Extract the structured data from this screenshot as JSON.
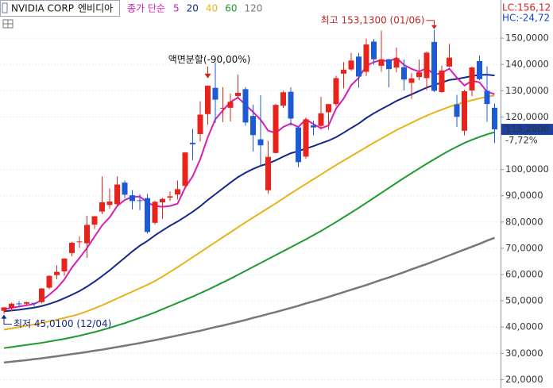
{
  "chart_data": {
    "type": "candlestick",
    "title": "NVIDIA CORP",
    "subtitle": "엔비디아",
    "ma_label": "종가 단순",
    "lc_label": "LC:156,12",
    "hc_label": "HC:-24,72",
    "up_color": "#e8231c",
    "down_color": "#1d5bd6",
    "open": [
      46.2,
      47.2,
      49.0,
      48.9,
      49.2,
      49.5,
      55.0,
      59.8,
      61.2,
      68.2,
      72.6,
      71.9,
      79.0,
      84.0,
      86.5,
      86.8,
      95.0,
      90.2,
      88.3,
      89.1,
      79.7,
      87.5,
      89.3,
      90.5,
      93.8,
      110.2,
      113.5,
      121.1,
      131.1,
      123.2,
      123.5,
      128.0,
      130.6,
      120.4,
      111.5,
      92.1,
      106.3,
      124.3,
      129.6,
      116.0,
      104.9,
      116.8,
      116.6,
      121.8,
      124.9,
      136.5,
      138.1,
      143.0,
      137.2,
      148.7,
      139.5,
      141.99,
      138.8,
      138.97,
      132.99,
      135.2,
      134.8,
      148.6,
      129.5,
      139.2,
      124.8,
      114.75,
      130.1,
      141.3,
      130.0,
      123.5
    ],
    "high": [
      47.6,
      49.3,
      49.9,
      49.6,
      49.3,
      54.8,
      59.7,
      63.5,
      66.2,
      72.4,
      74.6,
      82.4,
      82.3,
      97.4,
      92.8,
      97.4,
      95.8,
      92.2,
      90.6,
      90.7,
      88.2,
      89.2,
      91.6,
      95.8,
      106.6,
      115.5,
      126.0,
      132.0,
      140.8,
      131.4,
      128.9,
      136.2,
      131.4,
      124.7,
      128.2,
      110.9,
      125.0,
      130.0,
      131.3,
      116.2,
      119.8,
      118.6,
      127.7,
      125.0,
      135.7,
      140.9,
      144.4,
      144.4,
      149.8,
      149.7,
      152.9,
      142.1,
      146.5,
      141.8,
      136.7,
      141.9,
      144.9,
      153.13,
      139.6,
      147.8,
      128.4,
      130.4,
      139.25,
      143.4,
      139.3,
      125.1
    ],
    "low": [
      45.01,
      46.0,
      47.5,
      48.2,
      47.3,
      49.0,
      54.4,
      58.2,
      59.5,
      66.9,
      70.2,
      66.3,
      77.3,
      83.0,
      85.1,
      86.0,
      89.1,
      84.8,
      84.5,
      75.6,
      79.0,
      81.2,
      88.0,
      88.6,
      92.6,
      103.5,
      110.7,
      117.0,
      117.8,
      118.0,
      118.3,
      127.0,
      116.7,
      106.8,
      101.4,
      90.7,
      106.1,
      123.4,
      116.7,
      100.9,
      104.1,
      113.0,
      115.2,
      115.1,
      124.0,
      130.9,
      137.5,
      131.2,
      135.6,
      139.9,
      137.2,
      131.3,
      137.0,
      130.1,
      126.9,
      134.0,
      130.2,
      129.5,
      129.2,
      139.0,
      116.25,
      113.0,
      127.9,
      134.0,
      118.2,
      110.1
    ],
    "close": [
      47.5,
      48.9,
      48.8,
      49.5,
      49.1,
      54.7,
      59.5,
      61.0,
      66.1,
      72.1,
      72.6,
      78.9,
      82.2,
      87.5,
      87.8,
      94.3,
      90.4,
      88.0,
      88.1,
      76.2,
      87.7,
      88.8,
      89.8,
      92.5,
      106.5,
      109.6,
      120.9,
      131.9,
      126.6,
      123.5,
      125.8,
      129.2,
      117.9,
      113.1,
      109.2,
      104.8,
      124.6,
      129.4,
      119.4,
      102.8,
      119.1,
      116.0,
      121.4,
      124.9,
      134.8,
      138.0,
      141.5,
      135.4,
      147.6,
      141.98,
      141.95,
      138.25,
      142.4,
      134.25,
      134.7,
      137.0,
      144.5,
      129.98,
      137.7,
      142.6,
      120.07,
      129.8,
      138.85,
      134.43,
      124.92,
      115.28
    ],
    "moving_averages": [
      {
        "name": "5",
        "color": "#d61fb4",
        "values": [
          46.8,
          47.3,
          47.8,
          48.3,
          48.8,
          50.2,
          52.3,
          54.8,
          58.1,
          62.7,
          66.3,
          70.1,
          74.4,
          78.7,
          81.8,
          86.1,
          88.4,
          89.6,
          89.7,
          87.4,
          86.1,
          85.8,
          86.1,
          87.0,
          93.1,
          97.4,
          103.9,
          112.3,
          119.1,
          122.5,
          125.7,
          127.4,
          124.6,
          121.9,
          119.0,
          114.8,
          113.9,
          116.2,
          117.5,
          116.2,
          119.1,
          117.3,
          115.7,
          116.8,
          123.2,
          127.0,
          132.1,
          134.9,
          139.5,
          140.9,
          141.7,
          141.1,
          142.5,
          139.8,
          138.3,
          137.3,
          138.6,
          136.1,
          136.8,
          138.4,
          135.0,
          132.0,
          133.8,
          133.2,
          129.6,
          128.7
        ]
      },
      {
        "name": "20",
        "color": "#13288a",
        "values": [
          46,
          46.3,
          46.6,
          47,
          47.4,
          48,
          48.8,
          49.8,
          51,
          52.3,
          53.7,
          55.4,
          57.3,
          59.4,
          61.6,
          64,
          66.4,
          68.8,
          71,
          72.8,
          74.9,
          76.8,
          78.6,
          80.2,
          82,
          83.9,
          86,
          88.4,
          90.6,
          92.8,
          95,
          97.1,
          98.8,
          100.2,
          101.4,
          102.3,
          103.5,
          104.9,
          106.2,
          107,
          108,
          108.9,
          110,
          111,
          112.3,
          114,
          115.8,
          117.5,
          119.6,
          121.4,
          123,
          124.5,
          126.1,
          127.4,
          128.6,
          129.9,
          131.2,
          132.2,
          133.1,
          134.1,
          134.5,
          135,
          135.6,
          136,
          136.1,
          135.8
        ]
      },
      {
        "name": "40",
        "color": "#e8b21a",
        "values": [
          39,
          39.5,
          40,
          40.5,
          41,
          41.6,
          42.2,
          42.8,
          43.5,
          44.2,
          45,
          46,
          47.1,
          48.3,
          49.6,
          50.9,
          52.2,
          53.5,
          54.8,
          56.1,
          57.5,
          59.2,
          61,
          62.8,
          64.7,
          66.6,
          68.5,
          70.4,
          72.3,
          74.2,
          76.1,
          78,
          79.9,
          81.7,
          83.5,
          85.3,
          87.1,
          89,
          90.9,
          92.7,
          94.5,
          96.3,
          98.1,
          99.9,
          101.7,
          103.4,
          105.1,
          106.8,
          108.5,
          110.2,
          111.8,
          113.4,
          115,
          116.4,
          117.8,
          119.2,
          120.5,
          121.7,
          122.8,
          123.9,
          124.8,
          125.6,
          126.4,
          127.1,
          127.7,
          128.2
        ]
      },
      {
        "name": "60",
        "color": "#1e9a2e",
        "values": [
          32,
          32.4,
          32.8,
          33.2,
          33.6,
          34.0,
          34.5,
          35.0,
          35.5,
          36.1,
          36.7,
          37.4,
          38.1,
          38.9,
          39.7,
          40.6,
          41.5,
          42.5,
          43.5,
          44.5,
          45.6,
          46.8,
          48,
          49.2,
          50.4,
          51.6,
          52.9,
          54.2,
          55.6,
          57,
          58.4,
          59.9,
          61.4,
          62.9,
          64.4,
          65.9,
          67.4,
          68.9,
          70.4,
          71.9,
          73.4,
          75,
          76.6,
          78.3,
          80,
          81.8,
          83.6,
          85.4,
          87.3,
          89.2,
          91.1,
          93,
          94.9,
          96.8,
          98.6,
          100.4,
          102.2,
          103.9,
          105.6,
          107.2,
          108.7,
          110.1,
          111.3,
          112.4,
          113.4,
          114.2
        ]
      },
      {
        "name": "120",
        "color": "#777777",
        "values": [
          26.5,
          26.8,
          27.1,
          27.4,
          27.8,
          28.1,
          28.5,
          28.9,
          29.3,
          29.7,
          30.1,
          30.5,
          31.0,
          31.4,
          31.9,
          32.4,
          32.9,
          33.4,
          33.9,
          34.5,
          35.0,
          35.6,
          36.2,
          36.8,
          37.4,
          38.0,
          38.6,
          39.3,
          40.0,
          40.6,
          41.3,
          42.0,
          42.7,
          43.5,
          44.2,
          45.0,
          45.7,
          46.5,
          47.3,
          48.1,
          49.0,
          49.8,
          50.6,
          51.5,
          52.4,
          53.3,
          54.2,
          55.1,
          56.0,
          57.0,
          58.0,
          58.9,
          59.9,
          60.9,
          62.0,
          63.0,
          64.0,
          65.1,
          66.2,
          67.3,
          68.4,
          69.5,
          70.6,
          71.7,
          72.9,
          74.0
        ]
      }
    ],
    "ylim": [
      16.8,
      157.9
    ],
    "yticks": [
      {
        "value": 150,
        "label": "150,0000"
      },
      {
        "value": 140,
        "label": "140,0000"
      },
      {
        "value": 130,
        "label": "130,0000"
      },
      {
        "value": 120,
        "label": "120,0000"
      },
      {
        "value": 100,
        "label": "100,0000"
      },
      {
        "value": 90,
        "label": "90,0000"
      },
      {
        "value": 80,
        "label": "80,0000"
      },
      {
        "value": 70,
        "label": "70,0000"
      },
      {
        "value": 60,
        "label": "60,0000"
      },
      {
        "value": 50,
        "label": "50,0000"
      },
      {
        "value": 40,
        "label": "40,0000"
      },
      {
        "value": 30,
        "label": "30,0000"
      },
      {
        "value": 20,
        "label": "20,0000"
      }
    ],
    "grid": true,
    "last_price": {
      "value": 115.28,
      "label": "115,2800"
    },
    "change_label": "-7,72%",
    "high_annotation": "최고 153,1300 (01/06)",
    "low_annotation": "최저 45,0100 (12/04)",
    "split_annotation": "액면분할(-90,00%)"
  }
}
